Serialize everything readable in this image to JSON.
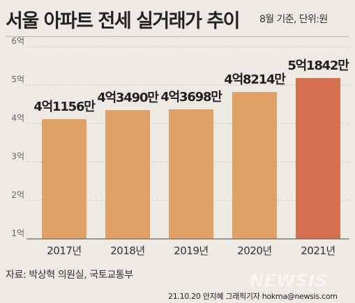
{
  "header": {
    "title": "서울 아파트 전세 실거래가 추이",
    "subtitle": "8월 기준, 단위:원"
  },
  "chart_data": {
    "type": "bar",
    "categories": [
      "2017년",
      "2018년",
      "2019년",
      "2020년",
      "2021년"
    ],
    "values": [
      41156,
      43490,
      43698,
      48214,
      51842
    ],
    "value_unit": "만원",
    "data_labels": [
      "4억1156만",
      "4억3490만",
      "4억3698만",
      "4억8214만",
      "5억1842만"
    ],
    "yticks": [
      1,
      2,
      3,
      4,
      5,
      6
    ],
    "ytick_labels": [
      "1억",
      "2억",
      "3억",
      "4억",
      "5억",
      "6억"
    ],
    "ylim": [
      1,
      6
    ],
    "grid": true,
    "colors": {
      "bar": "#dfa165",
      "highlight_bar": "#d4704f",
      "grid": "#cfc8bf"
    },
    "highlight_index": 4
  },
  "footer": {
    "source": "자료: 박상혁 의원실, 국토교통부",
    "credit": "21.10.20 안지혜 그래픽기자 hokma@newsis.com",
    "watermark": "NEWSIS"
  }
}
